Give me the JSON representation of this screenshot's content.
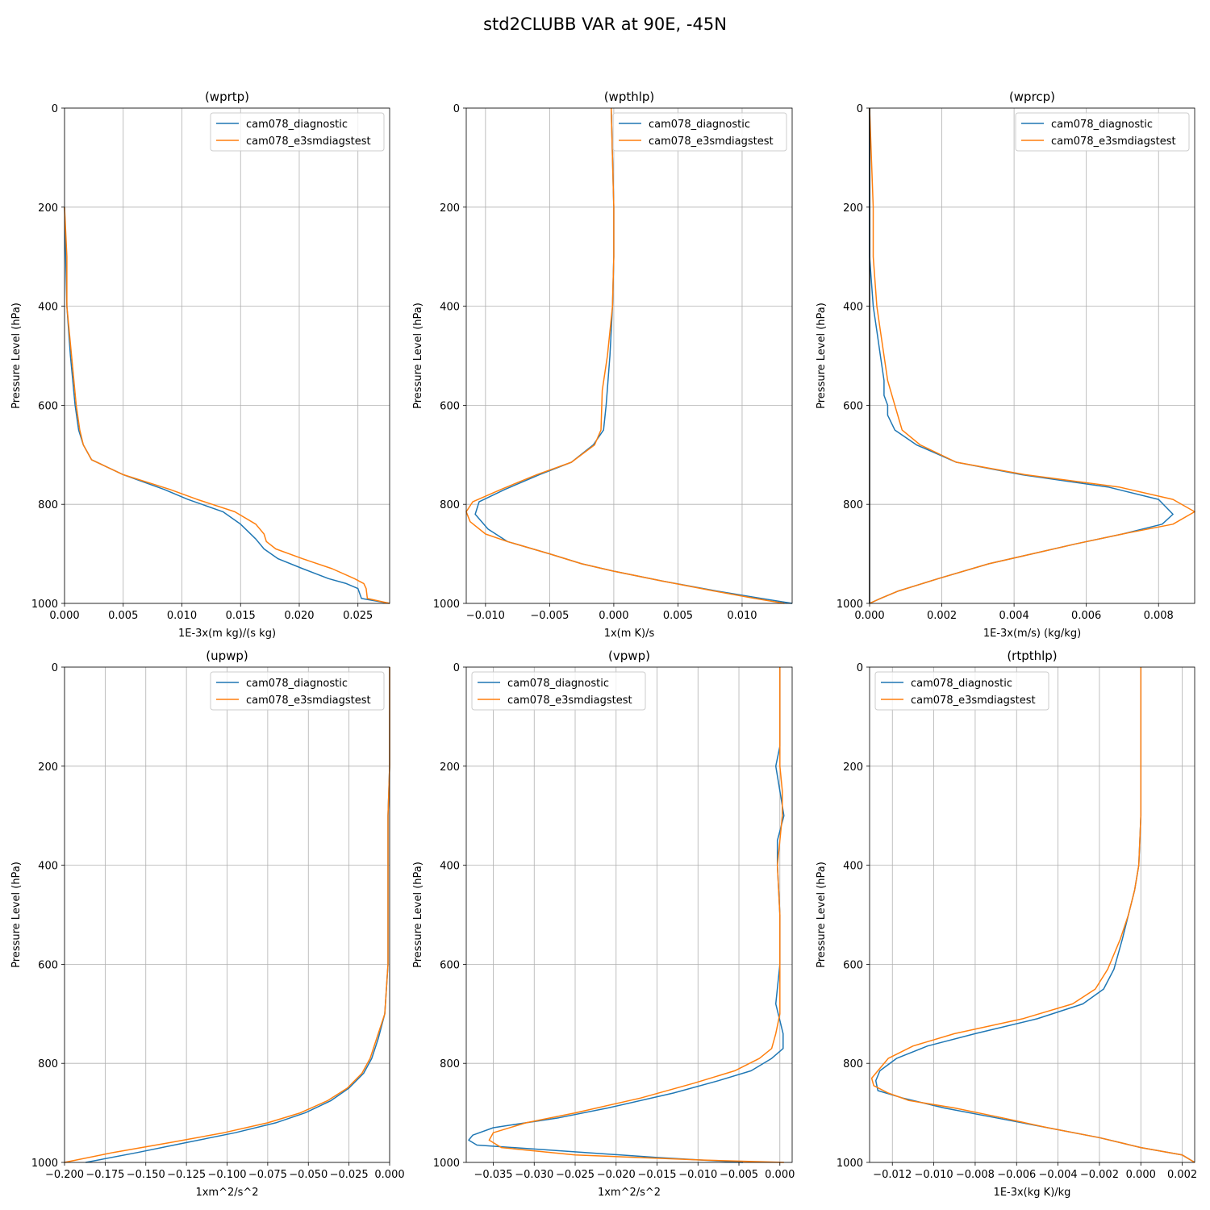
{
  "figure_title": "std2CLUBB VAR at 90E, -45N",
  "colors": {
    "cam078_diagnostic": "#1f77b4",
    "cam078_e3smdiagstest": "#ff7f0e"
  },
  "chart_data": [
    {
      "type": "line",
      "title": "(wprtp)",
      "xlabel": "1E-3x(m kg)/(s kg)",
      "ylabel": "Pressure Level (hPa)",
      "xlim": [
        0,
        0.0277
      ],
      "ylim": [
        1000,
        0
      ],
      "xticks": [
        0,
        0.005,
        0.01,
        0.015,
        0.02,
        0.025
      ],
      "xtick_labels": [
        "0.000",
        "0.005",
        "0.010",
        "0.015",
        "0.020",
        "0.025"
      ],
      "yticks": [
        0,
        200,
        400,
        600,
        800,
        1000
      ],
      "ytick_labels": [
        "0",
        "200",
        "400",
        "600",
        "800",
        "1000"
      ],
      "legend": "upper right",
      "grid": true,
      "series": [
        {
          "name": "cam078_diagnostic",
          "color": "#1f77b4",
          "pressure": [
            200,
            300,
            400,
            500,
            600,
            650,
            680,
            710,
            740,
            770,
            790,
            815,
            840,
            870,
            890,
            910,
            930,
            950,
            960,
            970,
            990,
            1000
          ],
          "values": [
            0,
            0.0001,
            0.0002,
            0.0005,
            0.0009,
            0.0012,
            0.0016,
            0.0023,
            0.005,
            0.0085,
            0.0105,
            0.0135,
            0.015,
            0.0163,
            0.017,
            0.0182,
            0.0203,
            0.0225,
            0.024,
            0.025,
            0.0253,
            0.0277
          ]
        },
        {
          "name": "cam078_e3smdiagstest",
          "color": "#ff7f0e",
          "pressure": [
            200,
            300,
            400,
            500,
            600,
            650,
            680,
            710,
            740,
            770,
            790,
            815,
            840,
            860,
            875,
            890,
            910,
            930,
            950,
            960,
            970,
            990,
            1000
          ],
          "values": [
            0,
            0.0002,
            0.0002,
            0.0006,
            0.001,
            0.0013,
            0.0016,
            0.0023,
            0.005,
            0.009,
            0.0113,
            0.0145,
            0.0163,
            0.017,
            0.0172,
            0.018,
            0.0203,
            0.0228,
            0.0247,
            0.0255,
            0.0257,
            0.0258,
            0.0277
          ]
        }
      ]
    },
    {
      "type": "line",
      "title": "(wpthlp)",
      "xlabel": "1x(m K)/s",
      "ylabel": "Pressure Level (hPa)",
      "xlim": [
        -0.0115,
        0.0139
      ],
      "ylim": [
        1000,
        0
      ],
      "xticks": [
        -0.01,
        -0.005,
        0,
        0.005,
        0.01
      ],
      "xtick_labels": [
        "−0.010",
        "−0.005",
        "0.000",
        "0.005",
        "0.010"
      ],
      "yticks": [
        0,
        200,
        400,
        600,
        800,
        1000
      ],
      "ytick_labels": [
        "0",
        "200",
        "400",
        "600",
        "800",
        "1000"
      ],
      "legend": "upper right",
      "grid": true,
      "series": [
        {
          "name": "cam078_diagnostic",
          "color": "#1f77b4",
          "pressure": [
            0,
            100,
            200,
            300,
            400,
            500,
            600,
            650,
            680,
            715,
            740,
            770,
            795,
            820,
            850,
            875,
            900,
            920,
            935,
            955,
            975,
            990,
            1000
          ],
          "values": [
            -0.0002,
            -0.0001,
            0,
            0,
            -0.0001,
            -0.0003,
            -0.0006,
            -0.0008,
            -0.0016,
            -0.0033,
            -0.0058,
            -0.0085,
            -0.0105,
            -0.0108,
            -0.0098,
            -0.0083,
            -0.005,
            -0.0025,
            0,
            0.0038,
            0.008,
            0.0115,
            0.0139
          ]
        },
        {
          "name": "cam078_e3smdiagstest",
          "color": "#ff7f0e",
          "pressure": [
            0,
            100,
            200,
            300,
            400,
            500,
            570,
            650,
            680,
            715,
            740,
            770,
            795,
            815,
            835,
            860,
            875,
            900,
            920,
            935,
            955,
            975,
            990,
            1000
          ],
          "values": [
            -0.0002,
            -0.0001,
            0,
            0,
            -0.0001,
            -0.0005,
            -0.0009,
            -0.001,
            -0.0015,
            -0.0033,
            -0.006,
            -0.0088,
            -0.011,
            -0.0115,
            -0.0112,
            -0.01,
            -0.0083,
            -0.005,
            -0.0025,
            0,
            0.0038,
            0.0078,
            0.011,
            0.0133
          ]
        }
      ]
    },
    {
      "type": "line",
      "title": "(wprcp)",
      "xlabel": "1E-3x(m/s) (kg/kg)",
      "ylabel": "Pressure Level (hPa)",
      "xlim": [
        0,
        0.009
      ],
      "ylim": [
        1000,
        0
      ],
      "xticks": [
        0,
        0.002,
        0.004,
        0.006,
        0.008
      ],
      "xtick_labels": [
        "0.000",
        "0.002",
        "0.004",
        "0.006",
        "0.008"
      ],
      "yticks": [
        0,
        200,
        400,
        600,
        800,
        1000
      ],
      "ytick_labels": [
        "0",
        "200",
        "400",
        "600",
        "800",
        "1000"
      ],
      "legend": "upper right",
      "grid": true,
      "series": [
        {
          "name": "cam078_diagnostic",
          "color": "#1f77b4",
          "pressure": [
            0,
            200,
            300,
            400,
            450,
            500,
            550,
            580,
            600,
            620,
            650,
            680,
            715,
            740,
            765,
            790,
            820,
            840,
            860,
            880,
            900,
            920,
            950,
            975,
            990,
            1000
          ],
          "values": [
            0,
            0,
            0,
            0.0001,
            0.0002,
            0.0003,
            0.0004,
            0.0004,
            0.0005,
            0.0005,
            0.0007,
            0.0013,
            0.0024,
            0.0042,
            0.0066,
            0.008,
            0.0084,
            0.0081,
            0.007,
            0.0057,
            0.0045,
            0.0033,
            0.0019,
            0.0008,
            0.0003,
            0
          ]
        },
        {
          "name": "cam078_e3smdiagstest",
          "color": "#ff7f0e",
          "pressure": [
            0,
            200,
            300,
            400,
            450,
            500,
            550,
            600,
            650,
            680,
            715,
            740,
            765,
            790,
            815,
            840,
            860,
            880,
            900,
            920,
            950,
            975,
            990,
            1000
          ],
          "values": [
            0,
            0.0001,
            0.0001,
            0.0002,
            0.0003,
            0.0004,
            0.0005,
            0.0007,
            0.0009,
            0.0014,
            0.0024,
            0.0043,
            0.0069,
            0.0084,
            0.009,
            0.0084,
            0.007,
            0.0057,
            0.0045,
            0.0033,
            0.0019,
            0.0008,
            0.0003,
            0
          ]
        },
        {
          "name": "",
          "color": "#000000",
          "pressure": [
            0,
            1000
          ],
          "values": [
            0,
            0
          ]
        }
      ]
    },
    {
      "type": "line",
      "title": "(upwp)",
      "xlabel": "1xm^2/s^2",
      "ylabel": "Pressure Level (hPa)",
      "xlim": [
        -0.2,
        0.0
      ],
      "ylim": [
        1000,
        0
      ],
      "xticks": [
        -0.2,
        -0.175,
        -0.15,
        -0.125,
        -0.1,
        -0.075,
        -0.05,
        -0.025,
        0
      ],
      "xtick_labels": [
        "−0.200",
        "−0.175",
        "−0.150",
        "−0.125",
        "−0.100",
        "−0.075",
        "−0.050",
        "−0.025",
        "0.000"
      ],
      "yticks": [
        0,
        200,
        400,
        600,
        800,
        1000
      ],
      "ytick_labels": [
        "0",
        "200",
        "400",
        "600",
        "800",
        "1000"
      ],
      "legend": "upper right",
      "grid": true,
      "series": [
        {
          "name": "cam078_diagnostic",
          "color": "#1f77b4",
          "pressure": [
            0,
            200,
            300,
            400,
            500,
            600,
            650,
            700,
            750,
            790,
            820,
            850,
            875,
            900,
            920,
            940,
            960,
            980,
            1000
          ],
          "values": [
            0,
            0,
            -0.001,
            -0.001,
            -0.001,
            -0.001,
            -0.002,
            -0.003,
            -0.007,
            -0.011,
            -0.016,
            -0.025,
            -0.036,
            -0.052,
            -0.07,
            -0.095,
            -0.125,
            -0.155,
            -0.187
          ]
        },
        {
          "name": "cam078_e3smdiagstest",
          "color": "#ff7f0e",
          "pressure": [
            0,
            200,
            300,
            400,
            500,
            600,
            650,
            700,
            750,
            790,
            820,
            850,
            875,
            900,
            920,
            940,
            960,
            980,
            1000
          ],
          "values": [
            0,
            0,
            -0.001,
            -0.001,
            -0.001,
            -0.001,
            -0.002,
            -0.003,
            -0.008,
            -0.012,
            -0.017,
            -0.026,
            -0.038,
            -0.055,
            -0.075,
            -0.102,
            -0.135,
            -0.17,
            -0.2
          ]
        }
      ]
    },
    {
      "type": "line",
      "title": "(vpwp)",
      "xlabel": "1xm^2/s^2",
      "ylabel": "Pressure Level (hPa)",
      "xlim": [
        -0.0383,
        0.0015
      ],
      "ylim": [
        1000,
        0
      ],
      "xticks": [
        -0.035,
        -0.03,
        -0.025,
        -0.02,
        -0.015,
        -0.01,
        -0.005,
        0
      ],
      "xtick_labels": [
        "−0.035",
        "−0.030",
        "−0.025",
        "−0.020",
        "−0.015",
        "−0.010",
        "−0.005",
        "0.000"
      ],
      "yticks": [
        0,
        200,
        400,
        600,
        800,
        1000
      ],
      "ytick_labels": [
        "0",
        "200",
        "400",
        "600",
        "800",
        "1000"
      ],
      "legend": "upper left",
      "grid": true,
      "series": [
        {
          "name": "cam078_diagnostic",
          "color": "#1f77b4",
          "pressure": [
            0,
            160,
            200,
            250,
            300,
            350,
            400,
            500,
            600,
            680,
            740,
            770,
            790,
            815,
            835,
            860,
            890,
            910,
            930,
            945,
            955,
            965,
            990,
            1000
          ],
          "values": [
            0,
            0,
            -0.0005,
            0,
            0.0005,
            -0.0003,
            -0.0003,
            0,
            0,
            -0.0005,
            0.0004,
            0.0004,
            -0.001,
            -0.0035,
            -0.0075,
            -0.013,
            -0.021,
            -0.027,
            -0.035,
            -0.0375,
            -0.038,
            -0.037,
            -0.015,
            -0.0045
          ]
        },
        {
          "name": "cam078_e3smdiagstest",
          "color": "#ff7f0e",
          "pressure": [
            0,
            150,
            200,
            250,
            300,
            350,
            400,
            500,
            600,
            700,
            740,
            770,
            790,
            815,
            840,
            870,
            900,
            920,
            940,
            955,
            970,
            985,
            995,
            1000
          ],
          "values": [
            0,
            0,
            0,
            0.0003,
            0.0003,
            0,
            -0.0003,
            0,
            0,
            0,
            -0.0005,
            -0.001,
            -0.0025,
            -0.0055,
            -0.0105,
            -0.017,
            -0.025,
            -0.031,
            -0.035,
            -0.0355,
            -0.034,
            -0.025,
            -0.01,
            0.0005
          ]
        }
      ]
    },
    {
      "type": "line",
      "title": "(rtpthlp)",
      "xlabel": "1E-3x(kg K)/kg",
      "ylabel": "Pressure Level (hPa)",
      "xlim": [
        -0.0131,
        0.0026
      ],
      "ylim": [
        1000,
        0
      ],
      "xticks": [
        -0.012,
        -0.01,
        -0.008,
        -0.006,
        -0.004,
        -0.002,
        0,
        0.002
      ],
      "xtick_labels": [
        "−0.012",
        "−0.010",
        "−0.008",
        "−0.006",
        "−0.004",
        "−0.002",
        "0.000",
        "0.002"
      ],
      "yticks": [
        0,
        200,
        400,
        600,
        800,
        1000
      ],
      "ytick_labels": [
        "0",
        "200",
        "400",
        "600",
        "800",
        "1000"
      ],
      "legend": "upper left",
      "grid": true,
      "series": [
        {
          "name": "cam078_diagnostic",
          "color": "#1f77b4",
          "pressure": [
            0,
            200,
            300,
            400,
            450,
            500,
            550,
            610,
            650,
            680,
            710,
            740,
            765,
            790,
            815,
            835,
            855,
            870,
            890,
            910,
            930,
            950,
            970,
            985,
            1000
          ],
          "values": [
            0,
            0,
            0,
            -0.0001,
            -0.0003,
            -0.0006,
            -0.0009,
            -0.0013,
            -0.0018,
            -0.0028,
            -0.005,
            -0.008,
            -0.0103,
            -0.0118,
            -0.0126,
            -0.0128,
            -0.0127,
            -0.0115,
            -0.0095,
            -0.007,
            -0.0045,
            -0.002,
            0,
            0.002,
            0.0026
          ]
        },
        {
          "name": "cam078_e3smdiagstest",
          "color": "#ff7f0e",
          "pressure": [
            0,
            200,
            300,
            400,
            450,
            500,
            550,
            610,
            650,
            680,
            710,
            740,
            765,
            790,
            815,
            830,
            845,
            860,
            875,
            890,
            910,
            930,
            950,
            970,
            985,
            1000
          ],
          "values": [
            0,
            0,
            0,
            -0.0001,
            -0.0003,
            -0.0006,
            -0.001,
            -0.0016,
            -0.0022,
            -0.0033,
            -0.0057,
            -0.009,
            -0.011,
            -0.0122,
            -0.0127,
            -0.013,
            -0.0129,
            -0.0122,
            -0.0112,
            -0.009,
            -0.0067,
            -0.0045,
            -0.002,
            0,
            0.002,
            0.0026
          ]
        }
      ]
    }
  ]
}
